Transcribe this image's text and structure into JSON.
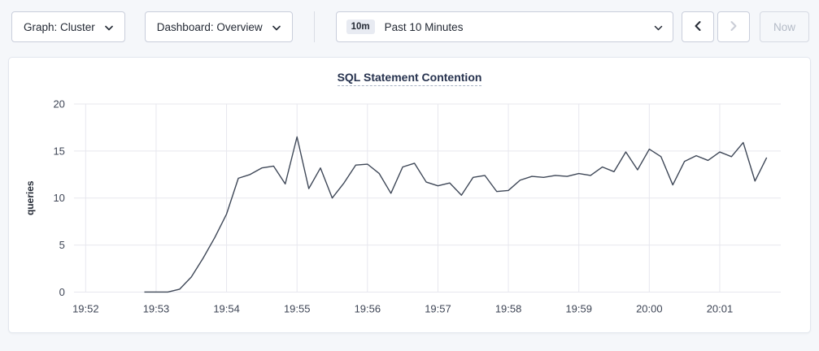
{
  "toolbar": {
    "graph_dropdown": "Graph: Cluster",
    "dashboard_dropdown": "Dashboard: Overview",
    "time_selector": {
      "badge": "10m",
      "value": "Past 10 Minutes"
    },
    "now_button": "Now"
  },
  "chart_data": {
    "type": "line",
    "title": "SQL Statement Contention",
    "xlabel": "",
    "ylabel": "queries",
    "ylim": [
      0,
      20
    ],
    "yticks": [
      0,
      5,
      10,
      15,
      20
    ],
    "xlim": [
      -10,
      592
    ],
    "grid": true,
    "legend": "none",
    "line_color": "#3e4757",
    "grid_color": "#e7e7ee",
    "axis_label_color": "#3e4555",
    "xticks": [
      {
        "t": 0,
        "label": "19:52"
      },
      {
        "t": 60,
        "label": "19:53"
      },
      {
        "t": 120,
        "label": "19:54"
      },
      {
        "t": 180,
        "label": "19:55"
      },
      {
        "t": 240,
        "label": "19:56"
      },
      {
        "t": 300,
        "label": "19:57"
      },
      {
        "t": 360,
        "label": "19:58"
      },
      {
        "t": 420,
        "label": "19:59"
      },
      {
        "t": 480,
        "label": "20:00"
      },
      {
        "t": 540,
        "label": "20:01"
      }
    ],
    "points": [
      [
        50,
        0
      ],
      [
        60,
        0
      ],
      [
        70,
        0
      ],
      [
        80,
        0.3
      ],
      [
        90,
        1.6
      ],
      [
        100,
        3.6
      ],
      [
        110,
        5.8
      ],
      [
        120,
        8.3
      ],
      [
        130,
        12.1
      ],
      [
        140,
        12.5
      ],
      [
        150,
        13.2
      ],
      [
        160,
        13.4
      ],
      [
        170,
        11.5
      ],
      [
        180,
        16.5
      ],
      [
        190,
        11.0
      ],
      [
        200,
        13.2
      ],
      [
        210,
        10.0
      ],
      [
        220,
        11.6
      ],
      [
        230,
        13.5
      ],
      [
        240,
        13.6
      ],
      [
        250,
        12.6
      ],
      [
        260,
        10.5
      ],
      [
        270,
        13.3
      ],
      [
        280,
        13.7
      ],
      [
        290,
        11.7
      ],
      [
        300,
        11.3
      ],
      [
        310,
        11.6
      ],
      [
        320,
        10.3
      ],
      [
        330,
        12.2
      ],
      [
        340,
        12.4
      ],
      [
        350,
        10.7
      ],
      [
        360,
        10.8
      ],
      [
        370,
        11.9
      ],
      [
        380,
        12.3
      ],
      [
        390,
        12.2
      ],
      [
        400,
        12.4
      ],
      [
        410,
        12.3
      ],
      [
        420,
        12.6
      ],
      [
        430,
        12.4
      ],
      [
        440,
        13.3
      ],
      [
        450,
        12.8
      ],
      [
        460,
        14.9
      ],
      [
        470,
        13.0
      ],
      [
        480,
        15.2
      ],
      [
        490,
        14.4
      ],
      [
        500,
        11.4
      ],
      [
        510,
        13.9
      ],
      [
        520,
        14.5
      ],
      [
        530,
        14.0
      ],
      [
        540,
        14.9
      ],
      [
        550,
        14.4
      ],
      [
        560,
        15.9
      ],
      [
        570,
        11.8
      ],
      [
        580,
        14.3
      ]
    ]
  }
}
